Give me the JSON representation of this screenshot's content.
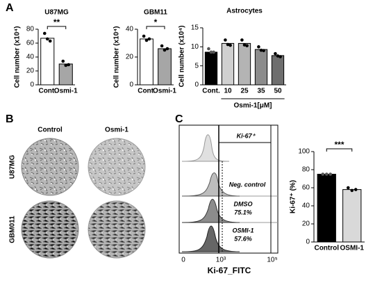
{
  "panel_labels": [
    "A",
    "B",
    "C"
  ],
  "chart_data": [
    {
      "type": "bar",
      "title": "U87MG",
      "ylabel": "Cell number (x10⁴)",
      "categories": [
        "Cont.",
        "Osmi-1"
      ],
      "values": [
        67,
        30
      ],
      "points": [
        [
          74,
          66,
          63
        ],
        [
          34,
          28,
          29
        ]
      ],
      "colors": [
        "#ffffff",
        "#a6a6a6"
      ],
      "ylim": [
        0,
        80
      ],
      "yticks": [
        0,
        20,
        40,
        60,
        80
      ],
      "significance": "**"
    },
    {
      "type": "bar",
      "title": "GBM11",
      "ylabel": "Cell number (x10⁴)",
      "categories": [
        "Cont.",
        "Osmi-1"
      ],
      "values": [
        33,
        26
      ],
      "points": [
        [
          35,
          32,
          33
        ],
        [
          28,
          25,
          26
        ]
      ],
      "colors": [
        "#ffffff",
        "#a6a6a6"
      ],
      "ylim": [
        0,
        40
      ],
      "yticks": [
        0,
        20,
        40
      ],
      "significance": "*"
    },
    {
      "type": "bar",
      "title": "Astrocytes",
      "ylabel": "Cell number (x10⁴)",
      "categories": [
        "Cont.",
        "10",
        "25",
        "35",
        "50"
      ],
      "values": [
        8.6,
        10.9,
        10.9,
        9.3,
        7.7
      ],
      "points": [
        [
          9.5,
          8.6,
          8.6
        ],
        [
          11.8,
          10.6,
          10.4
        ],
        [
          11.8,
          10.5,
          10.3
        ],
        [
          10.0,
          9.1,
          9.0
        ],
        [
          8.2,
          7.6,
          7.4
        ]
      ],
      "colors": [
        "#000000",
        "#d0d0d0",
        "#b4b4b4",
        "#8c8c8c",
        "#6e6e6e"
      ],
      "ylim": [
        0,
        15
      ],
      "yticks": [
        0,
        5,
        10,
        15
      ],
      "group_label": "Osmi-1[μM]"
    },
    {
      "type": "bar",
      "ylabel": "Ki-67⁺ (%)",
      "categories": [
        "Control",
        "OSMI-1"
      ],
      "values": [
        75,
        58
      ],
      "points": [
        [
          75,
          75,
          75
        ],
        [
          60,
          57,
          58
        ]
      ],
      "colors": [
        "#000000",
        "#d9d9d9"
      ],
      "ylim": [
        0,
        100
      ],
      "yticks": [
        0,
        20,
        40,
        60,
        80,
        100
      ],
      "significance": "***"
    }
  ],
  "images": {
    "columns": [
      "Control",
      "Osmi-1"
    ],
    "rows": [
      "U87MG",
      "GBM011"
    ]
  },
  "flow": {
    "gate": "Ki-67⁺",
    "rows": [
      {
        "label": "Neg. control"
      },
      {
        "label": "DMSO",
        "percent": "75.1%"
      },
      {
        "label": "OSMI-1",
        "percent": "57.6%"
      }
    ],
    "xlabel": "Ki-67_FITC",
    "xticks": [
      "0",
      "10³",
      "10⁵"
    ]
  }
}
